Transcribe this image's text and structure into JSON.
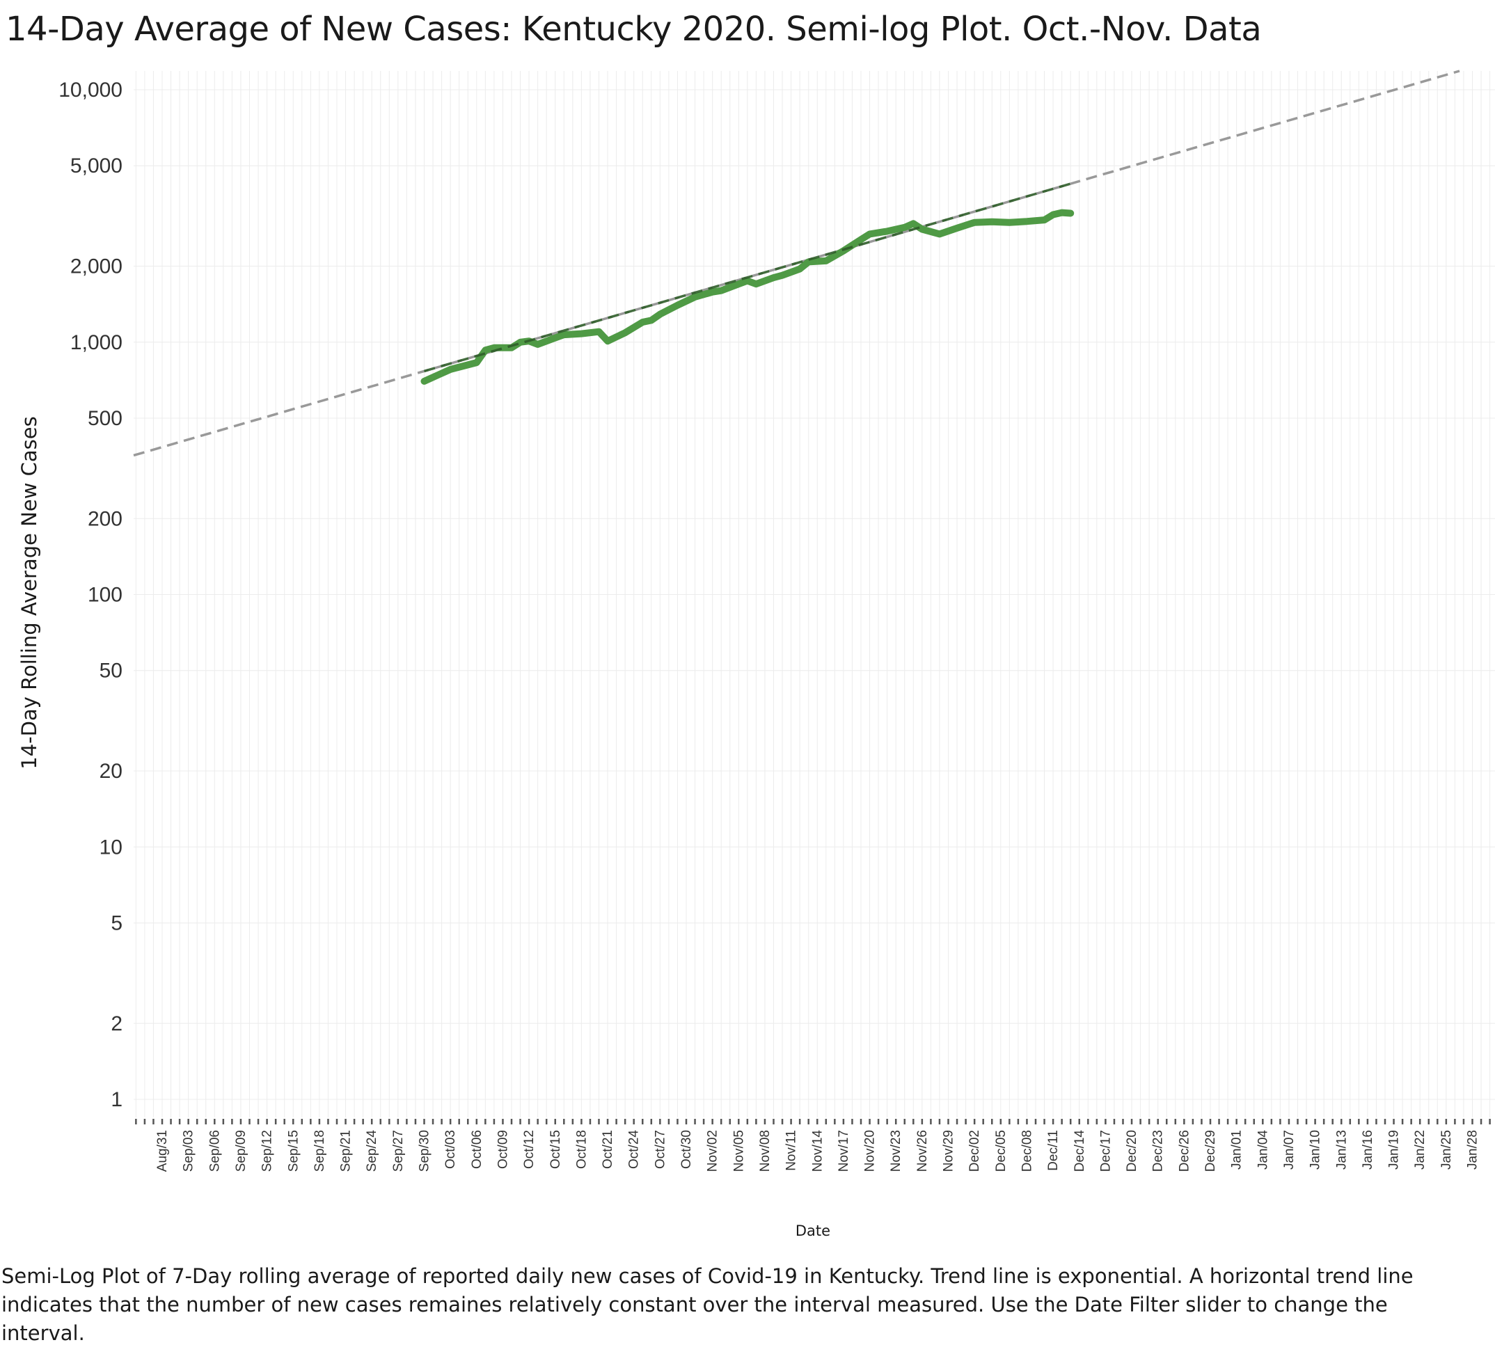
{
  "title": "14-Day Average of New Cases:  Kentucky 2020.  Semi-log Plot. Oct.-Nov. Data",
  "caption": "Semi-Log Plot of 7-Day rolling average of reported daily new cases of Covid-19 in Kentucky. Trend line is exponential. A horizontal trend line indicates that the number of new cases remaines relatively constant over the interval measured.  Use the Date Filter slider to change the interval.",
  "colors": {
    "series": "#4f9a45",
    "trend": "#999999",
    "trend_overlay": "#2f5e2a",
    "grid": "#ececec",
    "tick": "#555555"
  },
  "chart_data": {
    "type": "line",
    "title": "14-Day Average of New Cases:  Kentucky 2020.  Semi-log Plot. Oct.-Nov. Data",
    "xlabel": "Date",
    "ylabel": "14-Day Rolling Average New Cases",
    "y_scale": "log",
    "ylim": [
      0.8,
      12000
    ],
    "xlim": [
      "2020-08-27",
      "2021-01-30"
    ],
    "x_tick_labels": [
      "Aug/31",
      "Sep/03",
      "Sep/06",
      "Sep/09",
      "Sep/12",
      "Sep/15",
      "Sep/18",
      "Sep/21",
      "Sep/24",
      "Sep/27",
      "Sep/30",
      "Oct/03",
      "Oct/06",
      "Oct/09",
      "Oct/12",
      "Oct/15",
      "Oct/18",
      "Oct/21",
      "Oct/24",
      "Oct/27",
      "Oct/30",
      "Nov/02",
      "Nov/05",
      "Nov/08",
      "Nov/11",
      "Nov/14",
      "Nov/17",
      "Nov/20",
      "Nov/23",
      "Nov/26",
      "Nov/29",
      "Dec/02",
      "Dec/05",
      "Dec/08",
      "Dec/11",
      "Dec/14",
      "Dec/17",
      "Dec/20",
      "Dec/23",
      "Dec/26",
      "Dec/29",
      "Jan/01",
      "Jan/04",
      "Jan/07",
      "Jan/10",
      "Jan/13",
      "Jan/16",
      "Jan/19",
      "Jan/22",
      "Jan/25",
      "Jan/28"
    ],
    "x_tick_dates": [
      "2020-08-31",
      "2020-09-03",
      "2020-09-06",
      "2020-09-09",
      "2020-09-12",
      "2020-09-15",
      "2020-09-18",
      "2020-09-21",
      "2020-09-24",
      "2020-09-27",
      "2020-09-30",
      "2020-10-03",
      "2020-10-06",
      "2020-10-09",
      "2020-10-12",
      "2020-10-15",
      "2020-10-18",
      "2020-10-21",
      "2020-10-24",
      "2020-10-27",
      "2020-10-30",
      "2020-11-02",
      "2020-11-05",
      "2020-11-08",
      "2020-11-11",
      "2020-11-14",
      "2020-11-17",
      "2020-11-20",
      "2020-11-23",
      "2020-11-26",
      "2020-11-29",
      "2020-12-02",
      "2020-12-05",
      "2020-12-08",
      "2020-12-11",
      "2020-12-14",
      "2020-12-17",
      "2020-12-20",
      "2020-12-23",
      "2020-12-26",
      "2020-12-29",
      "2021-01-01",
      "2021-01-04",
      "2021-01-07",
      "2021-01-10",
      "2021-01-13",
      "2021-01-16",
      "2021-01-19",
      "2021-01-22",
      "2021-01-25",
      "2021-01-28"
    ],
    "y_ticks": [
      1,
      2,
      5,
      10,
      20,
      50,
      100,
      200,
      500,
      1000,
      2000,
      5000,
      10000
    ],
    "y_tick_labels": [
      "1",
      "2",
      "5",
      "10",
      "20",
      "50",
      "100",
      "200",
      "500",
      "1,000",
      "2,000",
      "5,000",
      "10,000"
    ],
    "series": [
      {
        "x": [
          "2020-09-30",
          "2020-10-03",
          "2020-10-06",
          "2020-10-07",
          "2020-10-08",
          "2020-10-10",
          "2020-10-11",
          "2020-10-12",
          "2020-10-13",
          "2020-10-15",
          "2020-10-16",
          "2020-10-18",
          "2020-10-20",
          "2020-10-21",
          "2020-10-23",
          "2020-10-25",
          "2020-10-26",
          "2020-10-27",
          "2020-10-29",
          "2020-10-31",
          "2020-11-02",
          "2020-11-03",
          "2020-11-05",
          "2020-11-06",
          "2020-11-07",
          "2020-11-09",
          "2020-11-10",
          "2020-11-12",
          "2020-11-13",
          "2020-11-15",
          "2020-11-17",
          "2020-11-19",
          "2020-11-20",
          "2020-11-22",
          "2020-11-24",
          "2020-11-25",
          "2020-11-26",
          "2020-11-28",
          "2020-11-30",
          "2020-12-02",
          "2020-12-04",
          "2020-12-06",
          "2020-12-08",
          "2020-12-10",
          "2020-12-11",
          "2020-12-12",
          "2020-12-13"
        ],
        "values": [
          700,
          780,
          830,
          930,
          950,
          950,
          1000,
          1010,
          980,
          1040,
          1070,
          1080,
          1100,
          1010,
          1090,
          1200,
          1220,
          1290,
          1400,
          1510,
          1580,
          1600,
          1700,
          1750,
          1700,
          1800,
          1840,
          1950,
          2080,
          2100,
          2300,
          2550,
          2680,
          2750,
          2850,
          2950,
          2800,
          2680,
          2830,
          2980,
          3000,
          2980,
          3010,
          3050,
          3200,
          3260,
          3240
        ]
      }
    ],
    "trend_line": {
      "type": "exponential",
      "x": [
        "2020-08-27",
        "2021-01-27"
      ],
      "values": [
        350,
        12000
      ]
    }
  }
}
